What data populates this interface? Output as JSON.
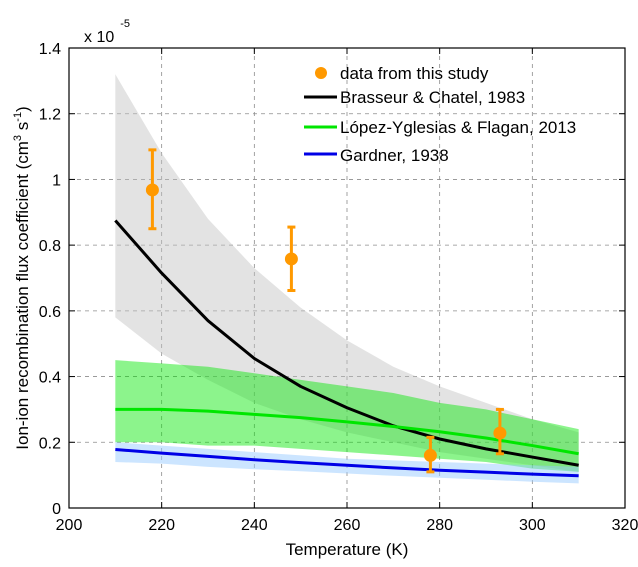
{
  "chart_data": {
    "type": "line",
    "title": "",
    "xlabel": "Temperature (K)",
    "ylabel": {
      "prefix": "Ion-ion recombination flux coefficient (cm",
      "sup1": "3",
      "mid": " s",
      "sup2": "-1",
      "suffix": ")"
    },
    "y_scale_label": {
      "base": "x 10",
      "exponent": "-5"
    },
    "xlim": [
      200,
      320
    ],
    "ylim": [
      0,
      1.4
    ],
    "xticks": [
      "200",
      "220",
      "240",
      "260",
      "280",
      "300",
      "320"
    ],
    "yticks": [
      "0",
      "0.2",
      "0.4",
      "0.6",
      "0.8",
      "1",
      "1.2",
      "1.4"
    ],
    "grid": true,
    "legend_position": "top-right",
    "legend": [
      {
        "label": "data from this study",
        "color": "#ff9900",
        "kind": "marker"
      },
      {
        "label": "Brasseur & Chatel, 1983",
        "color": "#000000",
        "kind": "line"
      },
      {
        "label": "López-Yglesias & Flagan, 2013",
        "color": "#00e600",
        "kind": "line"
      },
      {
        "label": "Gardner, 1938",
        "color": "#0000e6",
        "kind": "line"
      }
    ],
    "bands": [
      {
        "name": "Brasseur & Chatel, 1983 uncertainty",
        "color": "#c0c0c0",
        "opacity": 0.45,
        "x": [
          210,
          220,
          230,
          240,
          250,
          260,
          270,
          280,
          290,
          300,
          310
        ],
        "lower": [
          0.58,
          0.47,
          0.39,
          0.32,
          0.27,
          0.23,
          0.2,
          0.17,
          0.15,
          0.13,
          0.11
        ],
        "upper": [
          1.32,
          1.08,
          0.88,
          0.73,
          0.61,
          0.51,
          0.43,
          0.37,
          0.32,
          0.27,
          0.23
        ]
      },
      {
        "name": "López-Yglesias & Flagan, 2013 uncertainty",
        "color": "#00e600",
        "opacity": 0.45,
        "x": [
          210,
          220,
          230,
          240,
          250,
          260,
          270,
          280,
          290,
          300,
          310
        ],
        "lower": [
          0.2,
          0.2,
          0.19,
          0.19,
          0.18,
          0.17,
          0.16,
          0.15,
          0.14,
          0.12,
          0.11
        ],
        "upper": [
          0.45,
          0.44,
          0.43,
          0.41,
          0.39,
          0.37,
          0.35,
          0.32,
          0.3,
          0.27,
          0.24
        ]
      },
      {
        "name": "Gardner, 1938 uncertainty",
        "color": "#99ccff",
        "opacity": 0.5,
        "x": [
          210,
          220,
          230,
          240,
          250,
          260,
          270,
          280,
          290,
          300,
          310
        ],
        "lower": [
          0.14,
          0.135,
          0.125,
          0.118,
          0.112,
          0.105,
          0.098,
          0.092,
          0.086,
          0.08,
          0.075
        ],
        "upper": [
          0.2,
          0.19,
          0.18,
          0.17,
          0.16,
          0.15,
          0.145,
          0.14,
          0.135,
          0.13,
          0.125
        ]
      }
    ],
    "series": [
      {
        "name": "Brasseur & Chatel, 1983",
        "color": "#000000",
        "x": [
          210,
          220,
          230,
          240,
          250,
          260,
          270,
          280,
          290,
          300,
          310
        ],
        "y": [
          0.875,
          0.715,
          0.57,
          0.455,
          0.37,
          0.305,
          0.25,
          0.21,
          0.18,
          0.155,
          0.13
        ]
      },
      {
        "name": "López-Yglesias & Flagan, 2013",
        "color": "#00e600",
        "x": [
          210,
          220,
          230,
          240,
          250,
          260,
          270,
          280,
          290,
          300,
          310
        ],
        "y": [
          0.3,
          0.3,
          0.295,
          0.285,
          0.275,
          0.262,
          0.248,
          0.232,
          0.213,
          0.19,
          0.165
        ]
      },
      {
        "name": "Gardner, 1938",
        "color": "#0000e6",
        "x": [
          210,
          220,
          230,
          240,
          250,
          260,
          270,
          280,
          290,
          300,
          310
        ],
        "y": [
          0.178,
          0.167,
          0.157,
          0.147,
          0.138,
          0.13,
          0.122,
          0.115,
          0.109,
          0.103,
          0.098
        ]
      }
    ],
    "points": {
      "name": "data from this study",
      "color": "#ff9900",
      "x": [
        218,
        248,
        278,
        293
      ],
      "y": [
        0.968,
        0.758,
        0.16,
        0.228
      ],
      "err_low": [
        0.85,
        0.662,
        0.11,
        0.165
      ],
      "err_high": [
        1.09,
        0.855,
        0.215,
        0.3
      ]
    }
  }
}
